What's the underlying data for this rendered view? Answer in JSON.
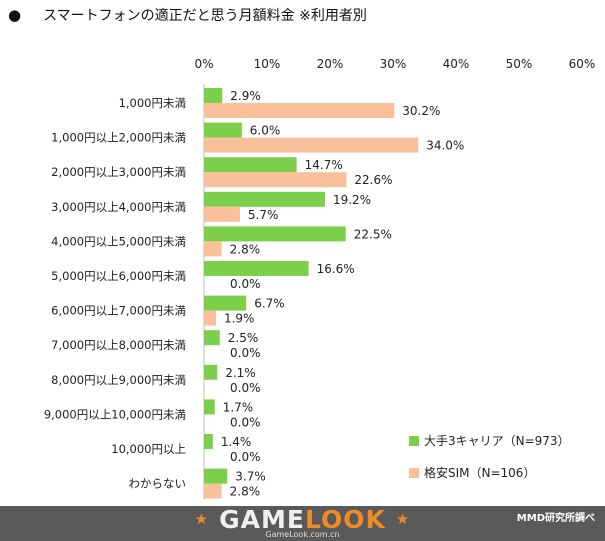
{
  "chart_data": {
    "type": "bar",
    "title_bullet": "●",
    "title": "スマートフォンの適正だと思う月額料金 ※利用者別",
    "categories": [
      "1,000円未満",
      "1,000円以上2,000円未満",
      "2,000円以上3,000円未満",
      "3,000円以上4,000円未満",
      "4,000円以上5,000円未満",
      "5,000円以上6,000円未満",
      "6,000円以上7,000円未満",
      "7,000円以上8,000円未満",
      "8,000円以上9,000円未満",
      "9,000円以上10,000円未満",
      "10,000円以上",
      "わからない"
    ],
    "series": [
      {
        "name": "大手3キャリア（N=973）",
        "color": "#7ccf4a",
        "values": [
          2.9,
          6.0,
          14.7,
          19.2,
          22.5,
          16.6,
          6.7,
          2.5,
          2.1,
          1.7,
          1.4,
          3.7
        ],
        "labels": [
          "2.9%",
          "6.0%",
          "14.7%",
          "19.2%",
          "22.5%",
          "16.6%",
          "6.7%",
          "2.5%",
          "2.1%",
          "1.7%",
          "1.4%",
          "3.7%"
        ]
      },
      {
        "name": "格安SIM（N=106）",
        "color": "#f9c099",
        "values": [
          30.2,
          34.0,
          22.6,
          5.7,
          2.8,
          0.0,
          1.9,
          0.0,
          0.0,
          0.0,
          0.0,
          2.8
        ],
        "labels": [
          "30.2%",
          "34.0%",
          "22.6%",
          "5.7%",
          "2.8%",
          "0.0%",
          "1.9%",
          "0.0%",
          "0.0%",
          "0.0%",
          "0.0%",
          "2.8%"
        ]
      }
    ],
    "xlim": [
      0,
      60
    ],
    "x_ticks": [
      "0%",
      "10%",
      "20%",
      "30%",
      "40%",
      "50%",
      "60%"
    ],
    "grid": false,
    "legend_position": "bottom-right",
    "orientation": "horizontal"
  },
  "footer": {
    "brand_left_star": "★",
    "brand_game": "GAME",
    "brand_look": "LOOK",
    "brand_right_star": "★",
    "brand_url": "GameLook.com.cn",
    "credit": "MMD研究所調べ"
  }
}
